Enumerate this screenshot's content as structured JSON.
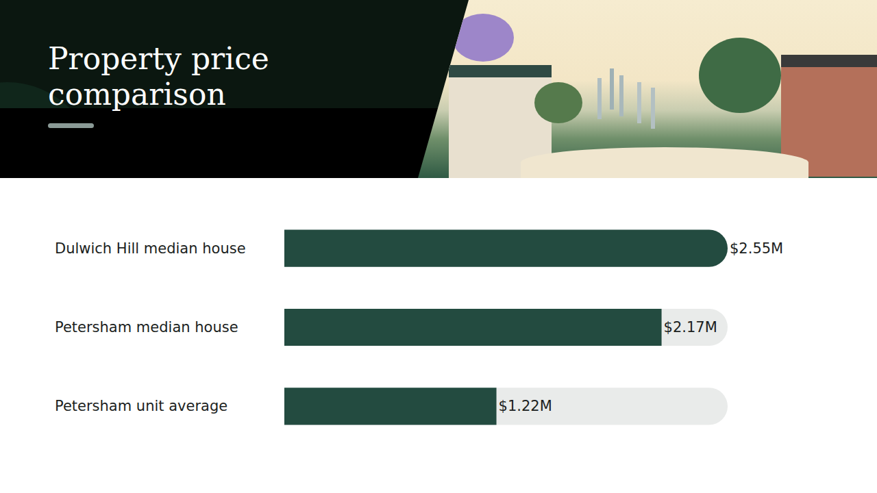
{
  "chart_data": {
    "type": "bar",
    "title": "Property price comparison",
    "orientation": "horizontal",
    "categories": [
      "Dulwich Hill median house",
      "Petersham median house",
      "Petersham unit average"
    ],
    "values": [
      2.55,
      2.17,
      1.22
    ],
    "value_labels": [
      "$2.55M",
      "$2.17M",
      "$1.22M"
    ],
    "xlim": [
      0,
      2.55
    ],
    "color": "#234b40",
    "data_labels": true,
    "tick_labels": "y",
    "grid": false
  }
}
